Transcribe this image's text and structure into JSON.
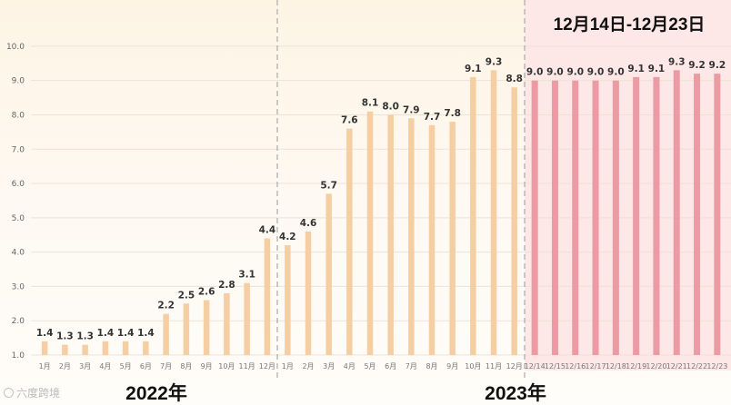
{
  "chart_data": {
    "type": "bar",
    "ylim": [
      1.0,
      10.5
    ],
    "yticks": [
      "1.0",
      "2.0",
      "3.0",
      "4.0",
      "5.0",
      "6.0",
      "7.0",
      "8.0",
      "9.0",
      "10.0"
    ],
    "groups": [
      {
        "name": "2022年",
        "categories": [
          "1月",
          "2月",
          "3月",
          "4月",
          "5月",
          "6月",
          "7月",
          "8月",
          "9月",
          "10月",
          "11月",
          "12月"
        ],
        "values": [
          1.4,
          1.3,
          1.3,
          1.4,
          1.4,
          1.4,
          2.2,
          2.5,
          2.6,
          2.8,
          3.1,
          4.4
        ],
        "labels": [
          "1.4",
          "1.3",
          "1.3",
          "1.4",
          "1.4",
          "1.4",
          "2.2",
          "2.5",
          "2.6",
          "2.8",
          "3.1",
          "4.4"
        ],
        "color": "#f5cfa3"
      },
      {
        "name": "2023年",
        "categories": [
          "1月",
          "2月",
          "3月",
          "4月",
          "5月",
          "6月",
          "7月",
          "8月",
          "9月",
          "10月",
          "11月",
          "12月"
        ],
        "values": [
          4.2,
          4.6,
          5.7,
          7.6,
          8.1,
          8.0,
          7.9,
          7.7,
          7.8,
          9.1,
          9.3,
          8.8
        ],
        "labels": [
          "4.2",
          "4.6",
          "5.7",
          "7.6",
          "8.1",
          "8.0",
          "7.9",
          "7.7",
          "7.8",
          "9.1",
          "9.3",
          "8.8"
        ],
        "color": "#f5cfa3"
      },
      {
        "name": "12月14日-12月23日",
        "categories": [
          "12/14",
          "12/15",
          "12/16",
          "12/17",
          "12/18",
          "12/19",
          "12/20",
          "12/21",
          "12/22",
          "12/23"
        ],
        "values": [
          9.0,
          9.0,
          9.0,
          9.0,
          9.0,
          9.1,
          9.1,
          9.3,
          9.2,
          9.2
        ],
        "labels": [
          "9.0",
          "9.0",
          "9.0",
          "9.0",
          "9.0",
          "9.1",
          "9.1",
          "9.3",
          "9.2",
          "9.2"
        ],
        "color": "#ec9aa4"
      }
    ],
    "xlabel": "",
    "ylabel": ""
  },
  "watermark": "六度跨境",
  "colors": {
    "bar_main": "#f5cfa3",
    "bar_daily": "#ec9aa4",
    "daily_bg": "#fde7e7",
    "divider": "#9a9a9a"
  }
}
